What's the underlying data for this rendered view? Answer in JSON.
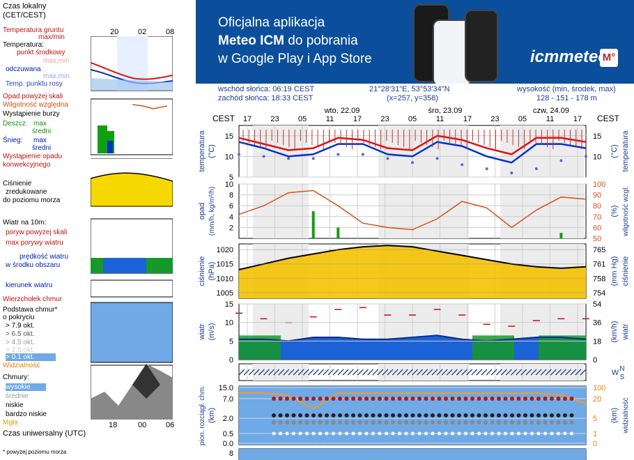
{
  "banner": {
    "line1": "Oficjalna aplikacja",
    "line2_bold": "Meteo ICM",
    "line2_rest": " do pobrania",
    "line3": "w Google Play i App Store",
    "brand": "icmmeteo",
    "brand_badge": "M°"
  },
  "location": {
    "sunrise": "wschód słońca: 06:19 CEST",
    "sunset": "zachód słońca: 18:33 CEST",
    "coords": "21°28'31\"E, 53°53'34\"N",
    "grid": "(x=257,  y=358)",
    "height_label": "wysokość (min, środek, max)",
    "height_values": "128 - 151 - 178 m"
  },
  "legend": {
    "time_title": "Czas lokalny",
    "time_sub": "(CET/CEST)",
    "small_ticks": [
      "20",
      "02",
      "08"
    ],
    "temp_ground": "Temperatura gruntu",
    "maxmin": "max/min",
    "temp_title": "Temperatura:",
    "dew_mid": "punkt środkowy",
    "max_min_1": "max,min",
    "perceived": "odczuwana",
    "max_min_2": "max,min",
    "dew_point": "Temp. punktu rosy",
    "precip_above": "Opad powyżej skali",
    "humidity": "Wilgotność względna",
    "storm": "Wystąpienie burzy",
    "rain": "Deszcz:",
    "snow": "Śnieg:",
    "rain_max": "max",
    "rain_avg": "średni",
    "snow_max": "max",
    "snow_avg": "średni",
    "conv": "Wystąpienie opadu",
    "conv2": "konwekcyjnego",
    "pressure1": "Ciśnienie",
    "pressure2": "zredukowane",
    "pressure3": "do poziomu morza",
    "wind_title": "Wiatr na 10m:",
    "gust_above": "poryw powyżej skali",
    "max_gust": "max porywy wiatru",
    "wind_speed": "prędkość wiatru",
    "wind_area": "w środku obszaru",
    "wind_dir": "kierunek wiatru",
    "cloud_top": "Wierzchołek chmur",
    "cloud_base1": "Podstawa chmur*",
    "cloud_base2": "o pokryciu",
    "okt1": "> 7.9 okt.",
    "okt2": "> 6.5 okt.",
    "okt3": "> 4.5 okt.",
    "okt4": "> 2.5 okt.",
    "okt5": "> 0.1 okt.",
    "visibility": "Widzialność",
    "clouds_title": "Chmury:",
    "cl_high": "wysokie",
    "cl_mid": "średnie",
    "cl_low": "niskie",
    "cl_vlow": "bardzo niskie",
    "fog": "Mgła",
    "utc_title": "Czas uniwersalny (UTC)",
    "utc_ticks": [
      "18",
      "00",
      "06"
    ],
    "footnote": "* powyżej poziomu morza"
  },
  "header": {
    "cest_left": "CEST",
    "cest_right": "CEST",
    "days": [
      "wto, 22.09",
      "śro, 23.09",
      "czw, 24.09"
    ],
    "hours": [
      "17",
      "23",
      "05",
      "11",
      "17",
      "23",
      "05",
      "11",
      "17",
      "23",
      "05",
      "11",
      "17"
    ]
  },
  "axes": {
    "temp_left": "temperatura",
    "temp_left_unit": "(°C)",
    "temp_right": "temperatura",
    "temp_right_unit": "(°C)",
    "precip_left": "opad",
    "precip_left_unit": "(mm/h, kg/m²/h)",
    "hum_right": "wilgotność wzgl.",
    "hum_right_unit": "(%)",
    "press_left": "ciśnienie",
    "press_left_unit": "(hPa)",
    "press_right": "ciśnienie",
    "press_right_unit": "(mm Hg)",
    "wind_left": "wiatr",
    "wind_left_unit": "(m/s)",
    "wind_right": "wiatr",
    "wind_right_unit": "(km/h)",
    "cloud_left": "pion. rozciągł. chm.",
    "cloud_left_unit": "(km)",
    "vis_right": "widzialność",
    "vis_right_unit": "(km)"
  },
  "chart_data": {
    "type": "line",
    "title": "",
    "x": [
      "17",
      "23",
      "05",
      "11",
      "17",
      "23",
      "05",
      "11",
      "17",
      "23",
      "05",
      "11",
      "17"
    ],
    "temperature": {
      "ylim": [
        5,
        17.5
      ],
      "ticks_left": [
        5,
        10,
        15
      ],
      "ticks_right": [
        10,
        15
      ],
      "series": [
        {
          "name": "max",
          "color": "#e01010",
          "values": [
            14.5,
            13.0,
            11.5,
            12.0,
            14.5,
            14.0,
            12.0,
            11.5,
            15.0,
            14.0,
            12.0,
            10.5,
            14.5,
            14.5,
            13.5
          ]
        },
        {
          "name": "mid",
          "color": "#0030d0",
          "values": [
            13.5,
            12.0,
            10.0,
            10.5,
            13.0,
            13.0,
            10.5,
            10.0,
            13.5,
            12.5,
            10.0,
            8.5,
            13.0,
            13.0,
            12.0
          ]
        },
        {
          "name": "dew",
          "color": "#6060e0",
          "values": [
            10.5,
            10.0,
            9.5,
            9.5,
            10.5,
            10.5,
            9.5,
            8.5,
            9.5,
            8.0,
            7.0,
            6.0,
            7.0,
            9.0,
            10.0
          ]
        }
      ]
    },
    "precipitation": {
      "ylim": [
        0,
        10
      ],
      "ticks": [
        2,
        4,
        6,
        8,
        10
      ],
      "humidity_ticks": [
        50,
        60,
        70,
        80,
        90,
        100
      ],
      "humidity_values": [
        72,
        80,
        92,
        94,
        80,
        64,
        60,
        58,
        68,
        84,
        78,
        60,
        76,
        88,
        86
      ],
      "rain_max": [
        0,
        0,
        0,
        5,
        2,
        0,
        0,
        0,
        0,
        0,
        0,
        0,
        0,
        1,
        0
      ]
    },
    "pressure": {
      "ylim": [
        1003,
        1022
      ],
      "ticks_left": [
        1005,
        1010,
        1015,
        1020
      ],
      "ticks_right": [
        754,
        758,
        761,
        765
      ],
      "values": [
        1013,
        1015,
        1017,
        1018.5,
        1020,
        1021,
        1021.5,
        1021,
        1019.5,
        1018,
        1016.5,
        1015,
        1014,
        1013.5,
        1014
      ]
    },
    "wind": {
      "ylim": [
        0,
        15
      ],
      "ticks_left": [
        5,
        10,
        15
      ],
      "ticks_right": [
        18,
        36,
        54
      ],
      "speed": [
        5.5,
        5.5,
        5.0,
        6.0,
        6.0,
        5.5,
        5.5,
        6.0,
        6.5,
        5.5,
        5.0,
        5.5,
        6.0,
        6.0,
        5.5
      ],
      "gusts": [
        12.5,
        11.0,
        10.0,
        11.5,
        13.5,
        14.0,
        12.0,
        12.0,
        13.5,
        12.0,
        9.5,
        9.0,
        10.5,
        11.0,
        11.0
      ]
    },
    "clouds": {
      "ticks_left": [
        0.0,
        0.5,
        2.0,
        7.0,
        15.0
      ],
      "ticks_right": [
        0,
        1,
        5,
        20,
        100
      ],
      "visibility": [
        20,
        20,
        18,
        5,
        20,
        20,
        20,
        20,
        20,
        20,
        20,
        20,
        20,
        18,
        10
      ]
    },
    "bottom": {
      "ticks": [
        8
      ]
    }
  },
  "colors": {
    "banner": "#0b4f9c",
    "temp_max": "#e01010",
    "temp_mid": "#0030d0",
    "pressure_fill": "#f5c200",
    "wind_fill": "#1b62d6",
    "wind_green": "#159a2a",
    "cloud_bg": "#6fa9e6",
    "humidity": "#d2521a"
  }
}
